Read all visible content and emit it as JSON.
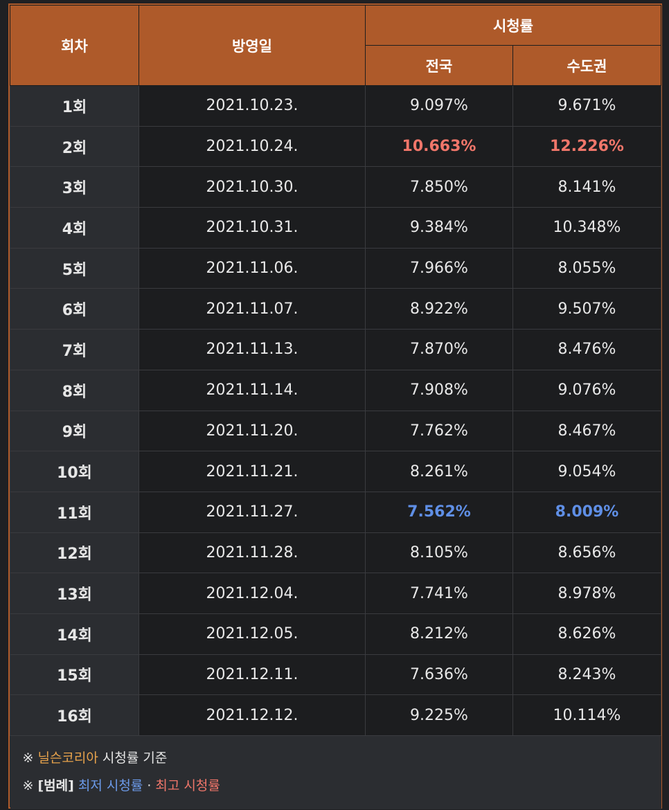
{
  "header": {
    "episode": "회차",
    "airdate": "방영일",
    "ratings": "시청률",
    "national": "전국",
    "capital": "수도권"
  },
  "rows": [
    {
      "episode": "1회",
      "date": "2021.10.23.",
      "national": "9.097%",
      "capital": "9.671%",
      "mark": ""
    },
    {
      "episode": "2회",
      "date": "2021.10.24.",
      "national": "10.663%",
      "capital": "12.226%",
      "mark": "max"
    },
    {
      "episode": "3회",
      "date": "2021.10.30.",
      "national": "7.850%",
      "capital": "8.141%",
      "mark": ""
    },
    {
      "episode": "4회",
      "date": "2021.10.31.",
      "national": "9.384%",
      "capital": "10.348%",
      "mark": ""
    },
    {
      "episode": "5회",
      "date": "2021.11.06.",
      "national": "7.966%",
      "capital": "8.055%",
      "mark": ""
    },
    {
      "episode": "6회",
      "date": "2021.11.07.",
      "national": "8.922%",
      "capital": "9.507%",
      "mark": ""
    },
    {
      "episode": "7회",
      "date": "2021.11.13.",
      "national": "7.870%",
      "capital": "8.476%",
      "mark": ""
    },
    {
      "episode": "8회",
      "date": "2021.11.14.",
      "national": "7.908%",
      "capital": "9.076%",
      "mark": ""
    },
    {
      "episode": "9회",
      "date": "2021.11.20.",
      "national": "7.762%",
      "capital": "8.467%",
      "mark": ""
    },
    {
      "episode": "10회",
      "date": "2021.11.21.",
      "national": "8.261%",
      "capital": "9.054%",
      "mark": ""
    },
    {
      "episode": "11회",
      "date": "2021.11.27.",
      "national": "7.562%",
      "capital": "8.009%",
      "mark": "min"
    },
    {
      "episode": "12회",
      "date": "2021.11.28.",
      "national": "8.105%",
      "capital": "8.656%",
      "mark": ""
    },
    {
      "episode": "13회",
      "date": "2021.12.04.",
      "national": "7.741%",
      "capital": "8.978%",
      "mark": ""
    },
    {
      "episode": "14회",
      "date": "2021.12.05.",
      "national": "8.212%",
      "capital": "8.626%",
      "mark": ""
    },
    {
      "episode": "15회",
      "date": "2021.12.11.",
      "national": "7.636%",
      "capital": "8.243%",
      "mark": ""
    },
    {
      "episode": "16회",
      "date": "2021.12.12.",
      "national": "9.225%",
      "capital": "10.114%",
      "mark": ""
    }
  ],
  "notes": {
    "line1_prefix": "※ ",
    "line1_source": "닐슨코리아",
    "line1_suffix": " 시청률 기준",
    "line2_prefix": "※ ",
    "line2_legend": "[범례]",
    "line2_min": "최저 시청률",
    "line2_sep": " · ",
    "line2_max": "최고 시청률"
  },
  "colors": {
    "header_bg": "#ae5a2a",
    "max": "#f0766a",
    "min": "#5f8fe6",
    "source": "#e8a34c"
  }
}
